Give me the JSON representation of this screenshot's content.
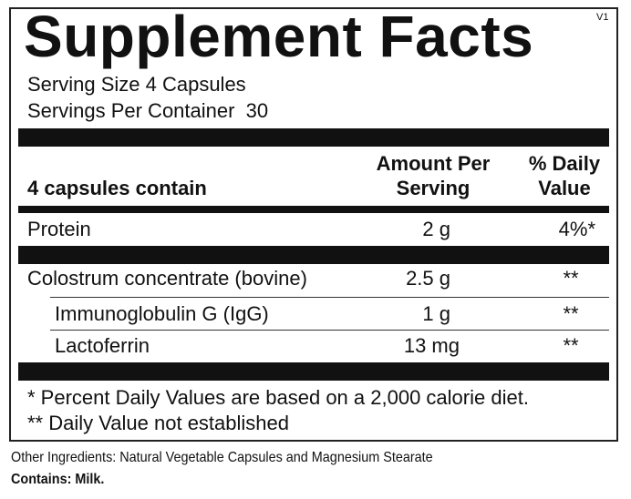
{
  "title": "Supplement Facts",
  "version": "V1",
  "serving_size": "Serving Size 4 Capsules",
  "servings_per_container": "Servings Per Container  30",
  "header": {
    "label": "4 capsules contain",
    "amount": [
      "Amount Per",
      "Serving"
    ],
    "daily_value": [
      "% Daily",
      "Value"
    ]
  },
  "rows": [
    {
      "name": "Protein",
      "amount": "2 g",
      "dv": "4%*"
    },
    {
      "name": "Colostrum concentrate (bovine)",
      "amount": "2.5 g",
      "dv": "**"
    },
    {
      "name": "Immunoglobulin G (IgG)",
      "amount": "1 g",
      "dv": "**"
    },
    {
      "name": "Lactoferrin",
      "amount": "13 mg",
      "dv": "**"
    }
  ],
  "footnotes": [
    "* Percent Daily Values are based on a 2,000 calorie diet.",
    "** Daily Value not established"
  ],
  "other_ingredients": "Other Ingredients: Natural Vegetable Capsules and Magnesium Stearate",
  "contains": "Contains: Milk."
}
